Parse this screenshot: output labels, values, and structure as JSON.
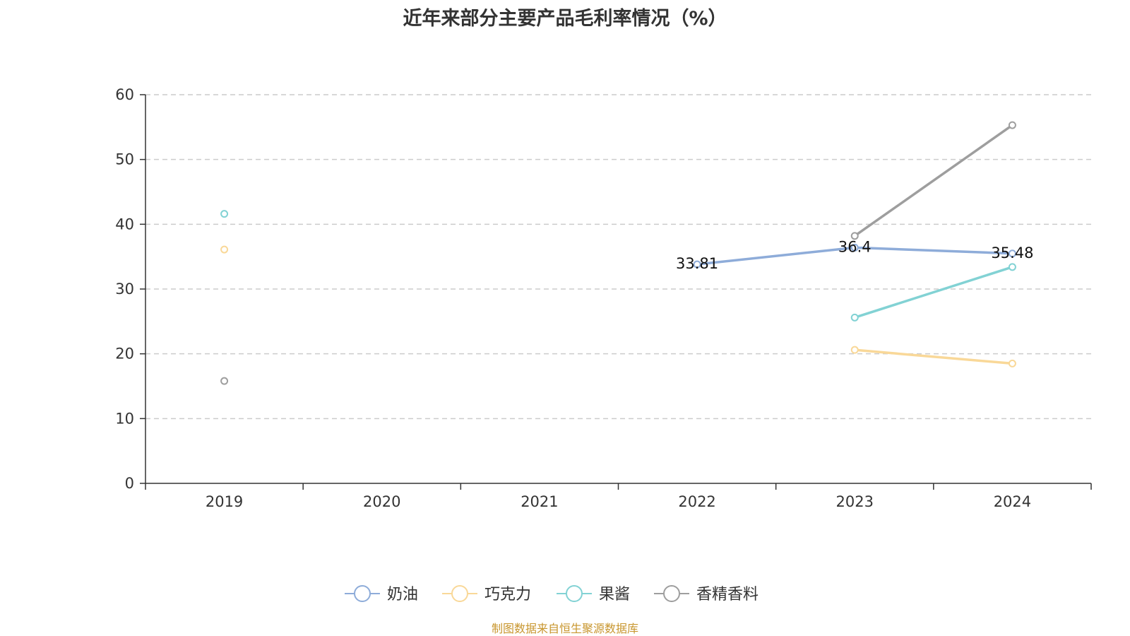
{
  "chart_data": {
    "type": "line",
    "title": "近年来部分主要产品毛利率情况（%）",
    "categories": [
      "2019",
      "2020",
      "2021",
      "2022",
      "2023",
      "2024"
    ],
    "ylim": [
      0,
      60
    ],
    "yticks": [
      0,
      10,
      20,
      30,
      40,
      50,
      60
    ],
    "grid": true,
    "legend_position": "bottom",
    "series": [
      {
        "name": "奶油",
        "color": "#8eacd9",
        "values": [
          null,
          null,
          null,
          33.81,
          36.4,
          35.48
        ],
        "labels": [
          null,
          null,
          null,
          "33.81",
          "36.4",
          "35.48"
        ]
      },
      {
        "name": "巧克力",
        "color": "#f9d898",
        "values": [
          36.1,
          null,
          null,
          null,
          20.6,
          18.5
        ]
      },
      {
        "name": "果酱",
        "color": "#82d2d4",
        "values": [
          41.6,
          null,
          null,
          null,
          25.6,
          33.4
        ]
      },
      {
        "name": "香精香料",
        "color": "#9e9e9e",
        "values": [
          15.8,
          null,
          null,
          null,
          38.2,
          55.3
        ]
      }
    ]
  },
  "source_note": "制图数据来自恒生聚源数据库"
}
